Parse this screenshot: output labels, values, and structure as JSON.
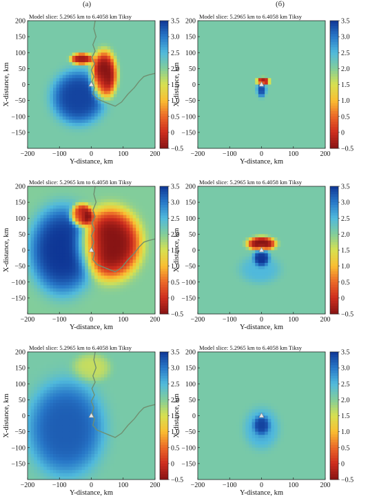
{
  "columns": [
    "(а)",
    "(б)"
  ],
  "chart_data": [
    {
      "type": "heatmap",
      "title": "Model slice: 5.2965 km to 6.4058 km Tiksy",
      "xlabel": "Y-distance, km",
      "ylabel": "X-distance, km",
      "xlim": [
        -200,
        200
      ],
      "ylim": [
        -200,
        200
      ],
      "xticks": [
        -200,
        -100,
        0,
        100,
        200
      ],
      "yticks": [
        200,
        150,
        100,
        50,
        0,
        -50,
        -100,
        -150
      ],
      "colorbar": {
        "range": [
          -0.5,
          3.5
        ],
        "ticks": [
          3.5,
          3.0,
          2.5,
          2.0,
          1.5,
          1.0,
          0.5,
          0,
          -0.5
        ]
      },
      "background": 2.1,
      "coastline": true,
      "station": [
        0,
        0
      ],
      "anomalies": [
        {
          "x": -40,
          "y": -40,
          "rx": 85,
          "ry": 85,
          "value": 3.4
        },
        {
          "x": 40,
          "y": 30,
          "rx": 40,
          "ry": 75,
          "value": -0.5
        },
        {
          "x": -30,
          "y": 80,
          "rx": 35,
          "ry": 18,
          "value": -0.3
        }
      ]
    },
    {
      "type": "heatmap",
      "title": "Model slice: 5.2965 km to 6.4058 km Tiksy",
      "xlabel": "Y-distance, km",
      "ylabel": "X-distance, km",
      "xlim": [
        -200,
        200
      ],
      "ylim": [
        -200,
        200
      ],
      "xticks": [
        -200,
        -100,
        0,
        100,
        200
      ],
      "yticks": [
        200,
        150,
        100,
        50,
        0,
        -50,
        -100,
        -150
      ],
      "colorbar": {
        "range": [
          -0.5,
          3.5
        ],
        "ticks": [
          3.5,
          3.0,
          2.5,
          2.0,
          1.5,
          1.0,
          0.5,
          0,
          -0.5
        ]
      },
      "background": 2.1,
      "coastline": false,
      "station": [
        0,
        0
      ],
      "anomalies": [
        {
          "x": 0,
          "y": -15,
          "rx": 15,
          "ry": 25,
          "value": 3.3
        },
        {
          "x": 5,
          "y": 10,
          "rx": 20,
          "ry": 12,
          "value": -0.4
        }
      ]
    },
    {
      "type": "heatmap",
      "title": "Model slice: 5.2965 km to 6.4058 km Tiksy",
      "xlabel": "Y-distance, km",
      "ylabel": "X-distance, km",
      "xlim": [
        -200,
        200
      ],
      "ylim": [
        -200,
        200
      ],
      "xticks": [
        -200,
        -100,
        0,
        100,
        200
      ],
      "yticks": [
        200,
        150,
        100,
        50,
        0,
        -50,
        -100,
        -150
      ],
      "colorbar": {
        "range": [
          -0.5,
          3.5
        ],
        "ticks": [
          3.5,
          3.0,
          2.5,
          2.0,
          1.5,
          1.0,
          0.5,
          0,
          -0.5
        ]
      },
      "background": 2.0,
      "coastline": true,
      "station": [
        0,
        0
      ],
      "anomalies": [
        {
          "x": -90,
          "y": 0,
          "rx": 105,
          "ry": 140,
          "value": 3.5
        },
        {
          "x": 60,
          "y": 20,
          "rx": 95,
          "ry": 110,
          "value": -0.5
        },
        {
          "x": -30,
          "y": 110,
          "rx": 35,
          "ry": 35,
          "value": -0.5
        }
      ]
    },
    {
      "type": "heatmap",
      "title": "Model slice: 5.2965 km to 6.4058 km Tiksy",
      "xlabel": "Y-distance, km",
      "ylabel": "X-distance, km",
      "xlim": [
        -200,
        200
      ],
      "ylim": [
        -200,
        200
      ],
      "xticks": [
        -200,
        -100,
        0,
        100,
        200
      ],
      "yticks": [
        200,
        150,
        100,
        50,
        0,
        -50,
        -100,
        -150
      ],
      "colorbar": {
        "range": [
          -0.5,
          3.5
        ],
        "ticks": [
          3.5,
          3.0,
          2.5,
          2.0,
          1.5,
          1.0,
          0.5,
          0,
          -0.5
        ]
      },
      "background": 2.1,
      "coastline": false,
      "station": [
        0,
        0
      ],
      "anomalies": [
        {
          "x": 0,
          "y": -20,
          "rx": 25,
          "ry": 30,
          "value": 3.3
        },
        {
          "x": 0,
          "y": 20,
          "rx": 45,
          "ry": 22,
          "value": -0.5
        },
        {
          "x": -5,
          "y": -60,
          "rx": 65,
          "ry": 45,
          "value": 2.5
        }
      ]
    },
    {
      "type": "heatmap",
      "title": "Model slice: 5.2965 km to 6.4058 km Tiksy",
      "xlabel": "Y-distance, km",
      "ylabel": "X-distance, km",
      "xlim": [
        -200,
        200
      ],
      "ylim": [
        -200,
        200
      ],
      "xticks": [
        -200,
        -100,
        0,
        100,
        200
      ],
      "yticks": [
        200,
        150,
        100,
        50,
        0,
        -50,
        -100,
        -150
      ],
      "colorbar": {
        "range": [
          -0.5,
          3.5
        ],
        "ticks": [
          3.5,
          3.0,
          2.5,
          2.0,
          1.5,
          1.0,
          0.5,
          0,
          -0.5
        ]
      },
      "background": 2.1,
      "coastline": true,
      "station": [
        0,
        0
      ],
      "anomalies": [
        {
          "x": -80,
          "y": -40,
          "rx": 120,
          "ry": 150,
          "value": 3.2
        },
        {
          "x": 0,
          "y": 150,
          "rx": 60,
          "ry": 45,
          "value": 1.6
        }
      ]
    },
    {
      "type": "heatmap",
      "title": "Model slice: 5.2965 km to 6.4058 km Tiksy",
      "xlabel": "Y-distance, km",
      "ylabel": "X-distance, km",
      "xlim": [
        -200,
        200
      ],
      "ylim": [
        -200,
        200
      ],
      "xticks": [
        -200,
        -100,
        0,
        100,
        200
      ],
      "yticks": [
        200,
        150,
        100,
        50,
        0,
        -50,
        -100,
        -150
      ],
      "colorbar": {
        "range": [
          -0.5,
          3.5
        ],
        "ticks": [
          3.5,
          3.0,
          2.5,
          2.0,
          1.5,
          1.0,
          0.5,
          0,
          -0.5
        ]
      },
      "background": 2.1,
      "coastline": false,
      "station": [
        0,
        0
      ],
      "anomalies": [
        {
          "x": 0,
          "y": -40,
          "rx": 55,
          "ry": 65,
          "value": 2.6
        },
        {
          "x": 0,
          "y": -30,
          "rx": 25,
          "ry": 30,
          "value": 2.9
        }
      ]
    }
  ]
}
